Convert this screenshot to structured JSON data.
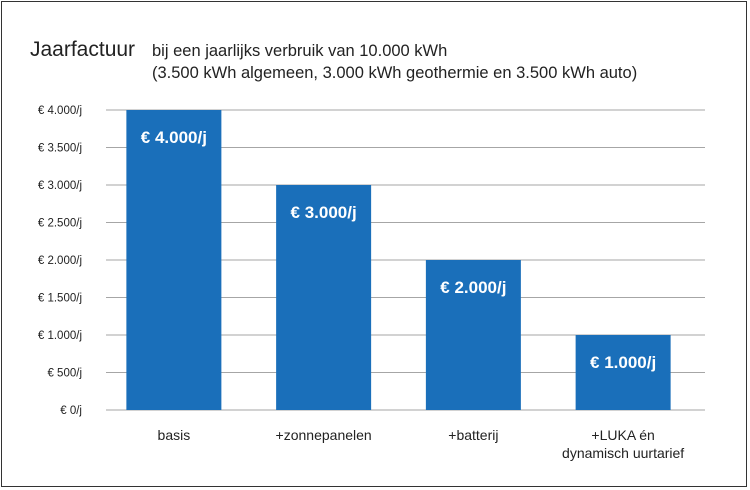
{
  "chart_data": {
    "type": "bar",
    "title": "Jaarfactuur",
    "subtitle_lines": [
      "bij een jaarlijks verbruik van 10.000 kWh",
      "(3.500 kWh algemeen, 3.000 kWh geothermie en 3.500 kWh auto)"
    ],
    "categories": [
      [
        "basis"
      ],
      [
        "+zonnepanelen"
      ],
      [
        "+batterij"
      ],
      [
        "+LUKA én",
        "dynamisch uurtarief"
      ]
    ],
    "values": [
      4000,
      3000,
      2000,
      1000
    ],
    "data_labels": [
      "€ 4.000/j",
      "€ 3.000/j",
      "€ 2.000/j",
      "€ 1.000/j"
    ],
    "yticks": [
      0,
      500,
      1000,
      1500,
      2000,
      2500,
      3000,
      3500,
      4000
    ],
    "ytick_labels": [
      "€ 0/j",
      "€ 500/j",
      "€ 1.000/j",
      "€ 1.500/j",
      "€ 2.000/j",
      "€ 2.500/j",
      "€ 3.000/j",
      "€ 3.500/j",
      "€ 4.000/j"
    ],
    "ylim": [
      0,
      4000
    ],
    "xlabel": "",
    "ylabel": "",
    "grid": true,
    "bar_color": "#1a6fba",
    "grid_color": "#a6a6a6"
  }
}
